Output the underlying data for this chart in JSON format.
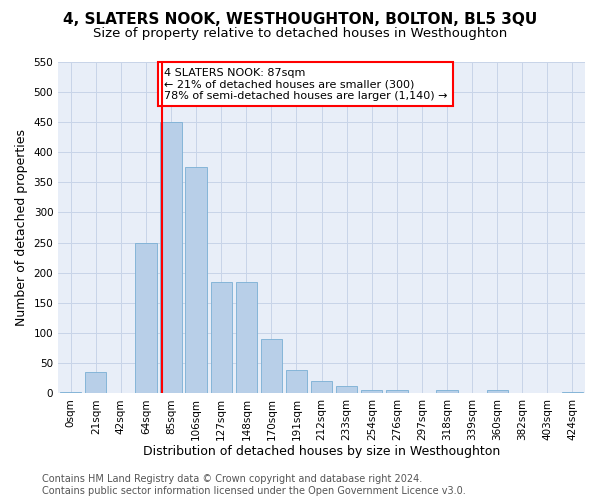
{
  "title": "4, SLATERS NOOK, WESTHOUGHTON, BOLTON, BL5 3QU",
  "subtitle": "Size of property relative to detached houses in Westhoughton",
  "xlabel": "Distribution of detached houses by size in Westhoughton",
  "ylabel": "Number of detached properties",
  "bar_color": "#b8cfe8",
  "bar_edge_color": "#7aafd4",
  "vline_color": "red",
  "vline_x": 4,
  "annotation_text": "4 SLATERS NOOK: 87sqm\n← 21% of detached houses are smaller (300)\n78% of semi-detached houses are larger (1,140) →",
  "annotation_box_color": "white",
  "annotation_box_edge": "red",
  "footer_line1": "Contains HM Land Registry data © Crown copyright and database right 2024.",
  "footer_line2": "Contains public sector information licensed under the Open Government Licence v3.0.",
  "categories": [
    "0sqm",
    "21sqm",
    "42sqm",
    "64sqm",
    "85sqm",
    "106sqm",
    "127sqm",
    "148sqm",
    "170sqm",
    "191sqm",
    "212sqm",
    "233sqm",
    "254sqm",
    "276sqm",
    "297sqm",
    "318sqm",
    "339sqm",
    "360sqm",
    "382sqm",
    "403sqm",
    "424sqm"
  ],
  "values": [
    3,
    35,
    0,
    250,
    450,
    375,
    185,
    185,
    90,
    38,
    20,
    12,
    5,
    5,
    0,
    5,
    0,
    5,
    0,
    0,
    3
  ],
  "ylim": [
    0,
    550
  ],
  "yticks": [
    0,
    50,
    100,
    150,
    200,
    250,
    300,
    350,
    400,
    450,
    500,
    550
  ],
  "grid_color": "#c8d4e8",
  "bg_color": "#e8eef8",
  "title_fontsize": 11,
  "subtitle_fontsize": 9.5,
  "axis_label_fontsize": 9,
  "tick_fontsize": 7.5,
  "footer_fontsize": 7
}
